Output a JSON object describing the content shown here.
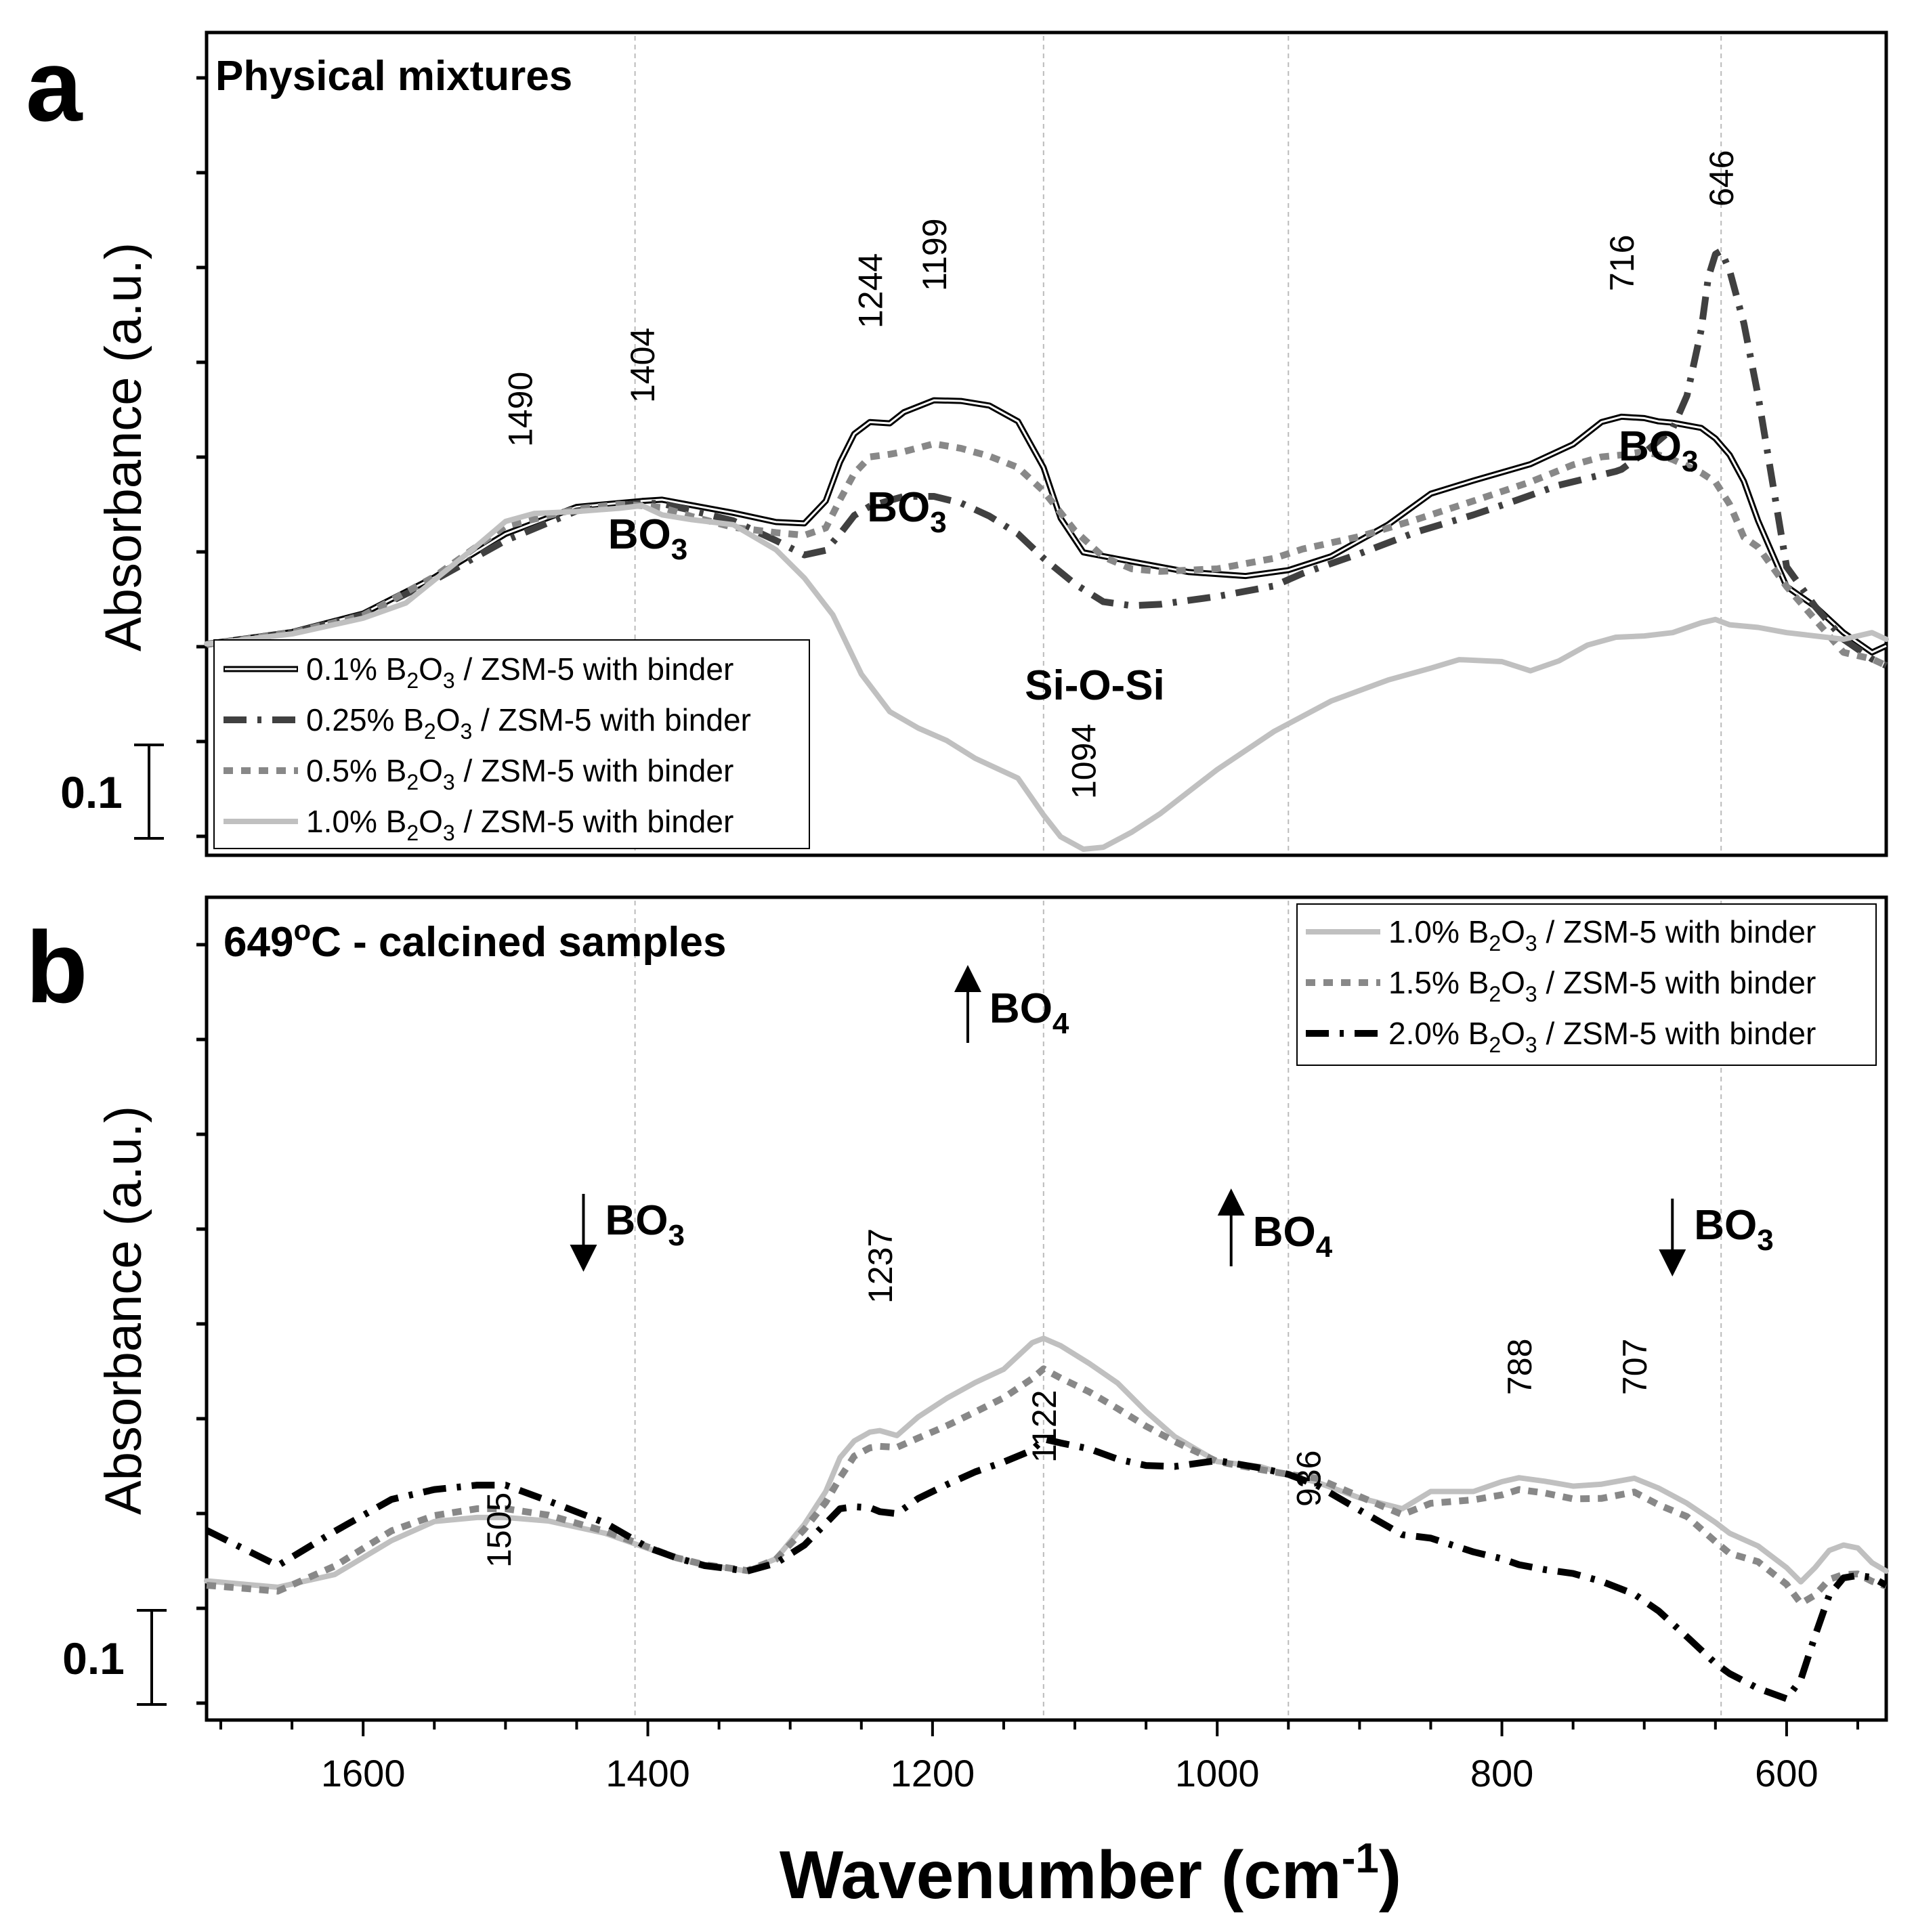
{
  "chart_data": [
    {
      "panel": "a",
      "type": "line",
      "title": "Physical mixtures",
      "ylabel": "Absorbance (a.u.)",
      "xlabel": "Wavenumber (cm-1)",
      "xlim": [
        1710,
        530
      ],
      "ylim": [
        0,
        1
      ],
      "x_ticks": [
        1600,
        1400,
        1200,
        1000,
        800,
        600
      ],
      "scale_bar_label": "0.1",
      "reference_lines": [
        1409,
        1122,
        950,
        646
      ],
      "peak_labels": [
        {
          "x": 1490,
          "label": "1490"
        },
        {
          "x": 1404,
          "label": "1404"
        },
        {
          "x": 1244,
          "label": "1244"
        },
        {
          "x": 1199,
          "label": "1199"
        },
        {
          "x": 716,
          "label": "716"
        },
        {
          "x": 646,
          "label": "646"
        },
        {
          "x": 1094,
          "label": "1094"
        }
      ],
      "group_labels": [
        {
          "x": 1400,
          "label": "BO",
          "sub": "3"
        },
        {
          "x": 1218,
          "label": "BO",
          "sub": "3"
        },
        {
          "x": 690,
          "label": "BO",
          "sub": "3"
        },
        {
          "x": 1086,
          "label": "Si-O-Si",
          "sub": ""
        }
      ],
      "series": [
        {
          "name": "0.1% B2O3 / ZSM-5 with binder",
          "prefix": "0.1% B",
          "suffix": " / ZSM-5 with binder",
          "style": "double",
          "color": "#000000",
          "x": [
            1710,
            1650,
            1600,
            1550,
            1500,
            1450,
            1420,
            1404,
            1390,
            1370,
            1340,
            1310,
            1290,
            1275,
            1265,
            1255,
            1244,
            1230,
            1220,
            1199,
            1180,
            1160,
            1140,
            1122,
            1110,
            1094,
            1060,
            1020,
            980,
            950,
            920,
            880,
            850,
            820,
            780,
            750,
            730,
            716,
            700,
            690,
            680,
            670,
            660,
            650,
            640,
            630,
            620,
            600,
            580,
            560,
            540,
            530
          ],
          "y": [
            0.313,
            0.331,
            0.359,
            0.414,
            0.48,
            0.521,
            0.527,
            0.53,
            0.532,
            0.524,
            0.512,
            0.498,
            0.496,
            0.53,
            0.589,
            0.632,
            0.65,
            0.648,
            0.665,
            0.683,
            0.682,
            0.675,
            0.651,
            0.581,
            0.504,
            0.452,
            0.438,
            0.422,
            0.416,
            0.425,
            0.446,
            0.494,
            0.541,
            0.561,
            0.586,
            0.616,
            0.65,
            0.658,
            0.656,
            0.651,
            0.649,
            0.645,
            0.641,
            0.625,
            0.6,
            0.56,
            0.5,
            0.4,
            0.37,
            0.33,
            0.3,
            0.31
          ]
        },
        {
          "name": "0.25% B2O3 / ZSM-5 with binder",
          "prefix": "0.25% B",
          "suffix": " / ZSM-5 with binder",
          "style": "dashdot",
          "color": "#404040",
          "x": [
            1710,
            1650,
            1600,
            1550,
            1500,
            1450,
            1420,
            1404,
            1390,
            1370,
            1340,
            1310,
            1290,
            1275,
            1265,
            1255,
            1244,
            1230,
            1220,
            1199,
            1180,
            1160,
            1140,
            1122,
            1100,
            1080,
            1060,
            1040,
            1000,
            960,
            940,
            900,
            860,
            820,
            790,
            760,
            720,
            716,
            700,
            680,
            670,
            660,
            655,
            650,
            646,
            640,
            630,
            620,
            600,
            580,
            560,
            540,
            530
          ],
          "y": [
            0.312,
            0.33,
            0.357,
            0.41,
            0.47,
            0.515,
            0.523,
            0.527,
            0.526,
            0.516,
            0.5,
            0.47,
            0.448,
            0.455,
            0.48,
            0.508,
            0.522,
            0.531,
            0.537,
            0.537,
            0.527,
            0.507,
            0.48,
            0.443,
            0.404,
            0.377,
            0.371,
            0.373,
            0.385,
            0.401,
            0.42,
            0.45,
            0.483,
            0.509,
            0.531,
            0.554,
            0.575,
            0.578,
            0.603,
            0.64,
            0.69,
            0.79,
            0.87,
            0.905,
            0.91,
            0.88,
            0.8,
            0.69,
            0.43,
            0.37,
            0.32,
            0.29,
            0.28
          ]
        },
        {
          "name": "0.5% B2O3 / ZSM-5 with binder",
          "prefix": "0.5% B",
          "suffix": " / ZSM-5 with binder",
          "style": "dotted",
          "color": "#888888",
          "x": [
            1710,
            1650,
            1600,
            1550,
            1500,
            1450,
            1420,
            1404,
            1390,
            1370,
            1340,
            1310,
            1290,
            1275,
            1265,
            1255,
            1244,
            1230,
            1220,
            1199,
            1180,
            1160,
            1140,
            1122,
            1100,
            1080,
            1060,
            1040,
            1000,
            960,
            940,
            900,
            860,
            820,
            780,
            750,
            730,
            716,
            700,
            690,
            680,
            660,
            650,
            640,
            630,
            620,
            600,
            580,
            560,
            540,
            530
          ],
          "y": [
            0.312,
            0.33,
            0.356,
            0.415,
            0.492,
            0.518,
            0.525,
            0.523,
            0.52,
            0.507,
            0.49,
            0.482,
            0.478,
            0.489,
            0.532,
            0.572,
            0.597,
            0.601,
            0.605,
            0.617,
            0.61,
            0.598,
            0.581,
            0.545,
            0.485,
            0.445,
            0.427,
            0.423,
            0.427,
            0.443,
            0.457,
            0.476,
            0.502,
            0.53,
            0.559,
            0.585,
            0.597,
            0.6,
            0.605,
            0.6,
            0.593,
            0.573,
            0.559,
            0.525,
            0.475,
            0.46,
            0.4,
            0.35,
            0.3,
            0.29,
            0.28
          ]
        },
        {
          "name": "1.0% B2O3 / ZSM-5 with binder",
          "prefix": "1.0% B",
          "suffix": " / ZSM-5 with binder",
          "style": "solid",
          "color": "#c0c0c0",
          "x": [
            1710,
            1650,
            1600,
            1570,
            1550,
            1520,
            1500,
            1480,
            1450,
            1420,
            1404,
            1390,
            1370,
            1340,
            1310,
            1290,
            1270,
            1250,
            1230,
            1210,
            1190,
            1170,
            1140,
            1122,
            1110,
            1094,
            1080,
            1060,
            1040,
            1000,
            960,
            920,
            880,
            850,
            830,
            800,
            780,
            760,
            740,
            720,
            700,
            680,
            660,
            650,
            640,
            620,
            600,
            580,
            560,
            540,
            530
          ],
          "y": [
            0.313,
            0.328,
            0.352,
            0.375,
            0.41,
            0.462,
            0.499,
            0.511,
            0.514,
            0.519,
            0.523,
            0.509,
            0.502,
            0.494,
            0.456,
            0.413,
            0.357,
            0.267,
            0.21,
            0.185,
            0.166,
            0.139,
            0.109,
            0.053,
            0.02,
            0.001,
            0.004,
            0.027,
            0.055,
            0.122,
            0.18,
            0.226,
            0.258,
            0.276,
            0.289,
            0.286,
            0.272,
            0.287,
            0.311,
            0.323,
            0.325,
            0.33,
            0.345,
            0.35,
            0.342,
            0.338,
            0.33,
            0.325,
            0.32,
            0.33,
            0.32
          ]
        }
      ]
    },
    {
      "panel": "b",
      "type": "line",
      "title": "649",
      "title_suffix": "C - calcined samples",
      "title_degree": "o",
      "ylabel": "Absorbance (a.u.)",
      "xlabel": "Wavenumber (cm-1)",
      "xlim": [
        1710,
        530
      ],
      "ylim": [
        0,
        1
      ],
      "x_ticks": [
        1600,
        1400,
        1200,
        1000,
        800,
        600
      ],
      "scale_bar_label": "0.1",
      "reference_lines": [
        1409,
        1122,
        950,
        646
      ],
      "peak_labels": [
        {
          "x": 1505,
          "label": "1505"
        },
        {
          "x": 1237,
          "label": "1237"
        },
        {
          "x": 1122,
          "label": "1122"
        },
        {
          "x": 936,
          "label": "936"
        },
        {
          "x": 788,
          "label": "788"
        },
        {
          "x": 707,
          "label": "707"
        }
      ],
      "group_labels": [
        {
          "x": 1430,
          "label": "BO",
          "sub": "3",
          "arrow": "down"
        },
        {
          "x": 1160,
          "label": "BO",
          "sub": "4",
          "arrow": "up"
        },
        {
          "x": 975,
          "label": "BO",
          "sub": "4",
          "arrow": "up"
        },
        {
          "x": 665,
          "label": "BO",
          "sub": "3",
          "arrow": "down"
        }
      ],
      "series": [
        {
          "name": "1.0% B2O3 / ZSM-5 with binder",
          "prefix": "1.0% B",
          "suffix": " / ZSM-5 with binder",
          "style": "solid",
          "color": "#c0c0c0",
          "x": [
            1710,
            1660,
            1620,
            1580,
            1550,
            1520,
            1500,
            1470,
            1430,
            1400,
            1380,
            1360,
            1330,
            1310,
            1290,
            1275,
            1265,
            1255,
            1244,
            1237,
            1225,
            1210,
            1190,
            1170,
            1150,
            1130,
            1122,
            1110,
            1090,
            1070,
            1050,
            1030,
            1000,
            970,
            950,
            930,
            900,
            870,
            850,
            820,
            800,
            788,
            770,
            750,
            730,
            707,
            690,
            670,
            650,
            640,
            620,
            600,
            590,
            580,
            570,
            560,
            550,
            540,
            530
          ],
          "y": [
            0.249,
            0.236,
            0.262,
            0.331,
            0.37,
            0.378,
            0.378,
            0.371,
            0.346,
            0.315,
            0.295,
            0.282,
            0.269,
            0.294,
            0.364,
            0.431,
            0.5,
            0.534,
            0.552,
            0.555,
            0.545,
            0.583,
            0.621,
            0.653,
            0.68,
            0.734,
            0.743,
            0.728,
            0.692,
            0.652,
            0.594,
            0.543,
            0.492,
            0.482,
            0.464,
            0.45,
            0.418,
            0.396,
            0.431,
            0.431,
            0.451,
            0.459,
            0.452,
            0.442,
            0.446,
            0.458,
            0.438,
            0.407,
            0.368,
            0.346,
            0.32,
            0.276,
            0.247,
            0.276,
            0.311,
            0.322,
            0.316,
            0.286,
            0.269
          ]
        },
        {
          "name": "1.5% B2O3 / ZSM-5 with binder",
          "prefix": "1.5% B",
          "suffix": " / ZSM-5 with binder",
          "style": "dotted",
          "color": "#888888",
          "x": [
            1710,
            1660,
            1620,
            1580,
            1550,
            1520,
            1500,
            1470,
            1430,
            1400,
            1380,
            1360,
            1330,
            1310,
            1290,
            1275,
            1265,
            1255,
            1244,
            1237,
            1225,
            1210,
            1190,
            1170,
            1150,
            1130,
            1122,
            1110,
            1090,
            1070,
            1050,
            1030,
            1000,
            970,
            950,
            930,
            900,
            870,
            850,
            820,
            800,
            788,
            770,
            750,
            730,
            707,
            690,
            670,
            650,
            640,
            620,
            600,
            590,
            580,
            570,
            560,
            550,
            540,
            530
          ],
          "y": [
            0.24,
            0.228,
            0.279,
            0.351,
            0.382,
            0.396,
            0.396,
            0.383,
            0.35,
            0.318,
            0.296,
            0.282,
            0.27,
            0.293,
            0.354,
            0.409,
            0.459,
            0.503,
            0.52,
            0.523,
            0.521,
            0.54,
            0.565,
            0.593,
            0.622,
            0.661,
            0.681,
            0.662,
            0.634,
            0.6,
            0.564,
            0.533,
            0.492,
            0.476,
            0.466,
            0.458,
            0.421,
            0.384,
            0.407,
            0.414,
            0.424,
            0.435,
            0.428,
            0.416,
            0.417,
            0.43,
            0.404,
            0.38,
            0.329,
            0.305,
            0.288,
            0.242,
            0.203,
            0.22,
            0.252,
            0.262,
            0.263,
            0.248,
            0.238
          ]
        },
        {
          "name": "2.0% B2O3 / ZSM-5 with binder",
          "prefix": "2.0% B",
          "suffix": " / ZSM-5 with binder",
          "style": "dashdot",
          "color": "#000000",
          "x": [
            1710,
            1660,
            1620,
            1580,
            1550,
            1520,
            1500,
            1470,
            1430,
            1400,
            1380,
            1360,
            1330,
            1310,
            1290,
            1275,
            1265,
            1255,
            1244,
            1237,
            1225,
            1210,
            1190,
            1170,
            1150,
            1130,
            1122,
            1110,
            1090,
            1070,
            1050,
            1030,
            1000,
            970,
            950,
            930,
            900,
            870,
            850,
            820,
            800,
            788,
            770,
            750,
            730,
            707,
            690,
            670,
            650,
            640,
            620,
            600,
            590,
            580,
            570,
            560,
            550,
            540,
            530
          ],
          "y": [
            0.352,
            0.28,
            0.35,
            0.415,
            0.435,
            0.444,
            0.444,
            0.412,
            0.367,
            0.317,
            0.296,
            0.28,
            0.269,
            0.285,
            0.322,
            0.366,
            0.396,
            0.4,
            0.398,
            0.39,
            0.386,
            0.417,
            0.445,
            0.471,
            0.491,
            0.515,
            0.538,
            0.53,
            0.518,
            0.497,
            0.484,
            0.482,
            0.494,
            0.479,
            0.466,
            0.444,
            0.393,
            0.343,
            0.336,
            0.308,
            0.294,
            0.282,
            0.272,
            0.264,
            0.248,
            0.222,
            0.188,
            0.135,
            0.081,
            0.06,
            0.03,
            0.009,
            0.048,
            0.137,
            0.22,
            0.255,
            0.26,
            0.256,
            0.24
          ]
        }
      ]
    }
  ]
}
